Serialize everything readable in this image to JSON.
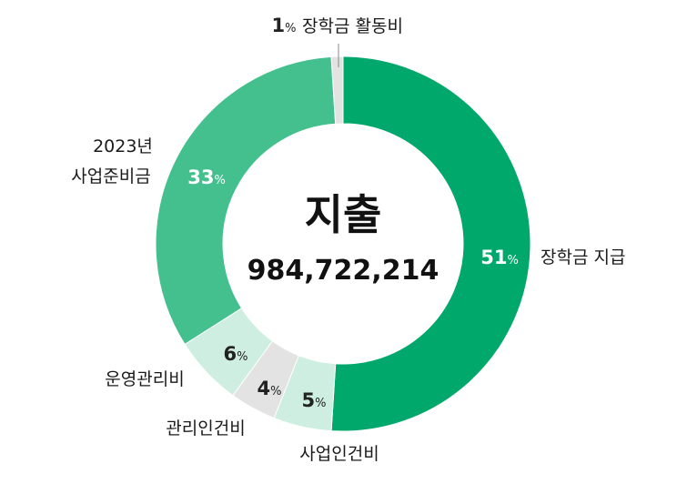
{
  "chart_data": {
    "type": "pie",
    "variant": "donut",
    "center_title": "지출",
    "center_value": "984,722,214",
    "percent_sign": "%",
    "slices": [
      {
        "label": "장학금 지급",
        "percent": 51,
        "color": "#00a86b",
        "text_color": "#ffffff"
      },
      {
        "label": "사업인건비",
        "percent": 5,
        "color": "#cdeee1",
        "text_color": "#222222"
      },
      {
        "label": "관리인건비",
        "percent": 4,
        "color": "#e3e3e3",
        "text_color": "#222222"
      },
      {
        "label": "운영관리비",
        "percent": 6,
        "color": "#cdeee1",
        "text_color": "#222222"
      },
      {
        "label_lines": [
          "2023년",
          "사업준비금"
        ],
        "percent": 33,
        "color": "#44c08f",
        "text_color": "#ffffff"
      },
      {
        "label": "장학금 활동비",
        "percent": 1,
        "color": "#e3e3e3",
        "text_color": "#222222"
      }
    ]
  }
}
